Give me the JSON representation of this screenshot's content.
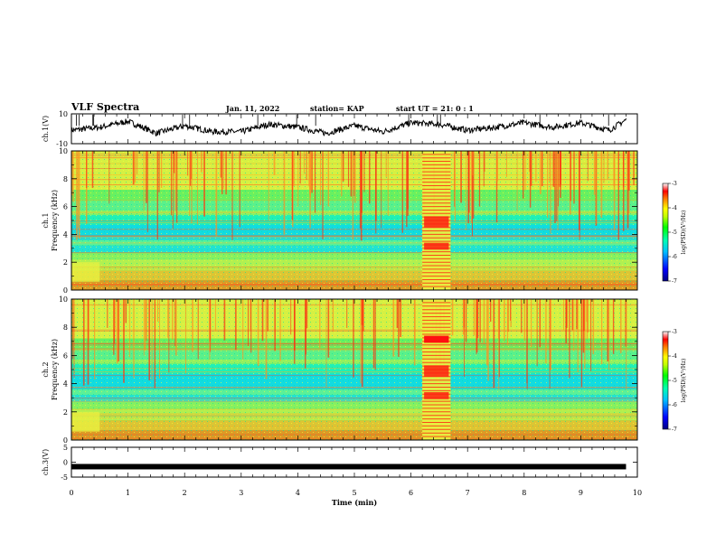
{
  "header": {
    "title": "VLF Spectra",
    "date": "Jan. 11, 2022",
    "station": "station= KAP",
    "start": "start  UT =  21: 0  : 1"
  },
  "colors": {
    "trace": "#000000",
    "colorbar": [
      "#000080",
      "#0000ff",
      "#00c0ff",
      "#00ffc0",
      "#00ff00",
      "#c0ff00",
      "#ffff00",
      "#ff8000",
      "#ff0000",
      "#ffffff"
    ]
  },
  "chart_data": [
    {
      "type": "line",
      "panel": "ch1-waveform",
      "ylabel": "ch.1(V)",
      "ylim": [
        -10,
        10
      ],
      "yticks": [
        "10",
        "-10"
      ],
      "xlim": [
        0,
        10
      ],
      "description_points_x": [
        0,
        0.5,
        1,
        1.5,
        2,
        2.5,
        3,
        3.5,
        4,
        4.5,
        5,
        5.5,
        6,
        6.5,
        7,
        7.5,
        8,
        8.5,
        9,
        9.5,
        9.8
      ],
      "values": [
        -1,
        1,
        5,
        -3,
        2,
        -2,
        -2,
        3,
        1,
        -3,
        2,
        -2,
        4,
        3,
        -1,
        1,
        4,
        1,
        4,
        -1,
        6
      ]
    },
    {
      "type": "heatmap",
      "panel": "ch1-spectrogram",
      "ylabel": "ch.1\nFrequency (kHz)",
      "ylim": [
        0,
        10
      ],
      "yticks": [
        "0",
        "2",
        "4",
        "6",
        "8",
        "10"
      ],
      "xlim": [
        0,
        10
      ],
      "colorbar": {
        "label": "log(PSD)(V²/Hz)",
        "range": [
          -7,
          -3
        ],
        "ticks": [
          "-3",
          "-4",
          "-5",
          "-6",
          "-7"
        ]
      },
      "disturbed_interval_min": [
        6.2,
        6.7
      ]
    },
    {
      "type": "heatmap",
      "panel": "ch2-spectrogram",
      "ylabel": "ch.2\nFrequency (kHz)",
      "ylim": [
        0,
        10
      ],
      "yticks": [
        "0",
        "2",
        "4",
        "6",
        "8",
        "10"
      ],
      "xlim": [
        0,
        10
      ],
      "colorbar": {
        "label": "log(PSD)(V²/Hz)",
        "range": [
          -7,
          -3
        ],
        "ticks": [
          "-3",
          "-4",
          "-5",
          "-6",
          "-7"
        ]
      },
      "disturbed_interval_min": [
        6.2,
        6.7
      ]
    },
    {
      "type": "line",
      "panel": "ch3-waveform",
      "ylabel": "ch.3(V)",
      "ylim": [
        -5,
        5
      ],
      "yticks": [
        "5",
        "0",
        "-5"
      ],
      "xlim": [
        0,
        10
      ],
      "x": [
        0,
        9.8
      ],
      "values": [
        -1.5,
        -1.5
      ]
    }
  ],
  "xaxis": {
    "label": "Time (min)",
    "ticks": [
      "0",
      "1",
      "2",
      "3",
      "4",
      "5",
      "6",
      "7",
      "8",
      "9",
      "10"
    ]
  }
}
